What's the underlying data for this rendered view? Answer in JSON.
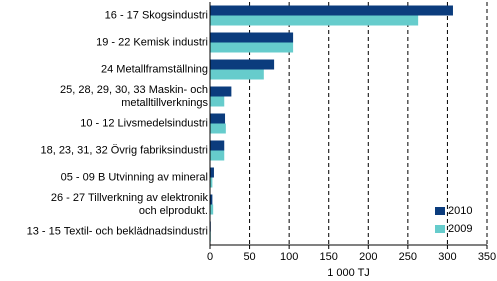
{
  "chart_data": {
    "type": "hbar",
    "x_label": "1 000 TJ",
    "categories": [
      "16 - 17 Skogsindustri",
      "19 - 22 Kemisk industri",
      "24 Metallframställning",
      "25, 28, 29, 30, 33 Maskin- och\nmetalltillverknings",
      "10 - 12 Livsmedelsindustri",
      "18, 23, 31, 32 Övrig fabriksindustri",
      "05 - 09 B Utvinning av mineral",
      "26 - 27 Tillverkning av elektronik\noch elprodukt.",
      "13 - 15 Textil- och beklädnadsindustri"
    ],
    "series": [
      {
        "name": "2010",
        "color": "#0b3c7d",
        "values": [
          307,
          105,
          81,
          27,
          19,
          18,
          5,
          3,
          1
        ]
      },
      {
        "name": "2009",
        "color": "#66cccc",
        "values": [
          263,
          105,
          68,
          18,
          20,
          18,
          3,
          4,
          1
        ]
      }
    ],
    "xlim": [
      0,
      350
    ],
    "xticks": [
      0,
      50,
      100,
      150,
      200,
      250,
      300,
      350
    ],
    "grid": true,
    "legend": "lower right"
  }
}
